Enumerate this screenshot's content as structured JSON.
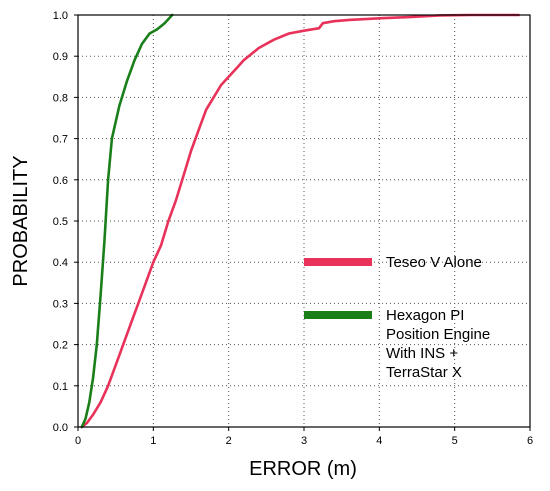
{
  "chart_data": {
    "type": "line",
    "xlabel": "ERROR (m)",
    "ylabel": "PROBABILITY",
    "xlim": [
      0,
      6
    ],
    "ylim": [
      0,
      1.0
    ],
    "x_ticks": [
      "0",
      "1",
      "2",
      "3",
      "4",
      "5",
      "6"
    ],
    "y_ticks": [
      "0.0",
      "0.1",
      "0.2",
      "0.3",
      "0.4",
      "0.5",
      "0.6",
      "0.7",
      "0.8",
      "0.9",
      "1.0"
    ],
    "grid": true,
    "legend_position": "right",
    "series": [
      {
        "name": "Teseo V Alone",
        "color": "#e8325a",
        "points": [
          [
            0.05,
            0.0
          ],
          [
            0.12,
            0.01
          ],
          [
            0.2,
            0.03
          ],
          [
            0.3,
            0.06
          ],
          [
            0.4,
            0.1
          ],
          [
            0.5,
            0.15
          ],
          [
            0.6,
            0.2
          ],
          [
            0.7,
            0.25
          ],
          [
            0.8,
            0.3
          ],
          [
            0.9,
            0.35
          ],
          [
            1.0,
            0.4
          ],
          [
            1.1,
            0.44
          ],
          [
            1.2,
            0.5
          ],
          [
            1.3,
            0.55
          ],
          [
            1.4,
            0.61
          ],
          [
            1.5,
            0.67
          ],
          [
            1.6,
            0.72
          ],
          [
            1.7,
            0.77
          ],
          [
            1.8,
            0.8
          ],
          [
            1.9,
            0.83
          ],
          [
            2.0,
            0.85
          ],
          [
            2.1,
            0.87
          ],
          [
            2.2,
            0.89
          ],
          [
            2.4,
            0.92
          ],
          [
            2.6,
            0.94
          ],
          [
            2.8,
            0.955
          ],
          [
            3.0,
            0.962
          ],
          [
            3.2,
            0.968
          ],
          [
            3.25,
            0.98
          ],
          [
            3.4,
            0.985
          ],
          [
            3.6,
            0.988
          ],
          [
            4.0,
            0.992
          ],
          [
            4.4,
            0.995
          ],
          [
            4.8,
            0.999
          ],
          [
            5.2,
            1.0
          ],
          [
            5.85,
            1.0
          ]
        ]
      },
      {
        "name": "Hexagon PI Position Engine With INS + TerraStar X",
        "color": "#1a7f1a",
        "points": [
          [
            0.05,
            0.0
          ],
          [
            0.1,
            0.02
          ],
          [
            0.15,
            0.06
          ],
          [
            0.2,
            0.12
          ],
          [
            0.25,
            0.2
          ],
          [
            0.3,
            0.32
          ],
          [
            0.35,
            0.45
          ],
          [
            0.4,
            0.6
          ],
          [
            0.45,
            0.7
          ],
          [
            0.55,
            0.78
          ],
          [
            0.65,
            0.84
          ],
          [
            0.75,
            0.89
          ],
          [
            0.85,
            0.93
          ],
          [
            0.95,
            0.955
          ],
          [
            1.05,
            0.965
          ],
          [
            1.15,
            0.98
          ],
          [
            1.25,
            1.0
          ]
        ]
      }
    ]
  }
}
